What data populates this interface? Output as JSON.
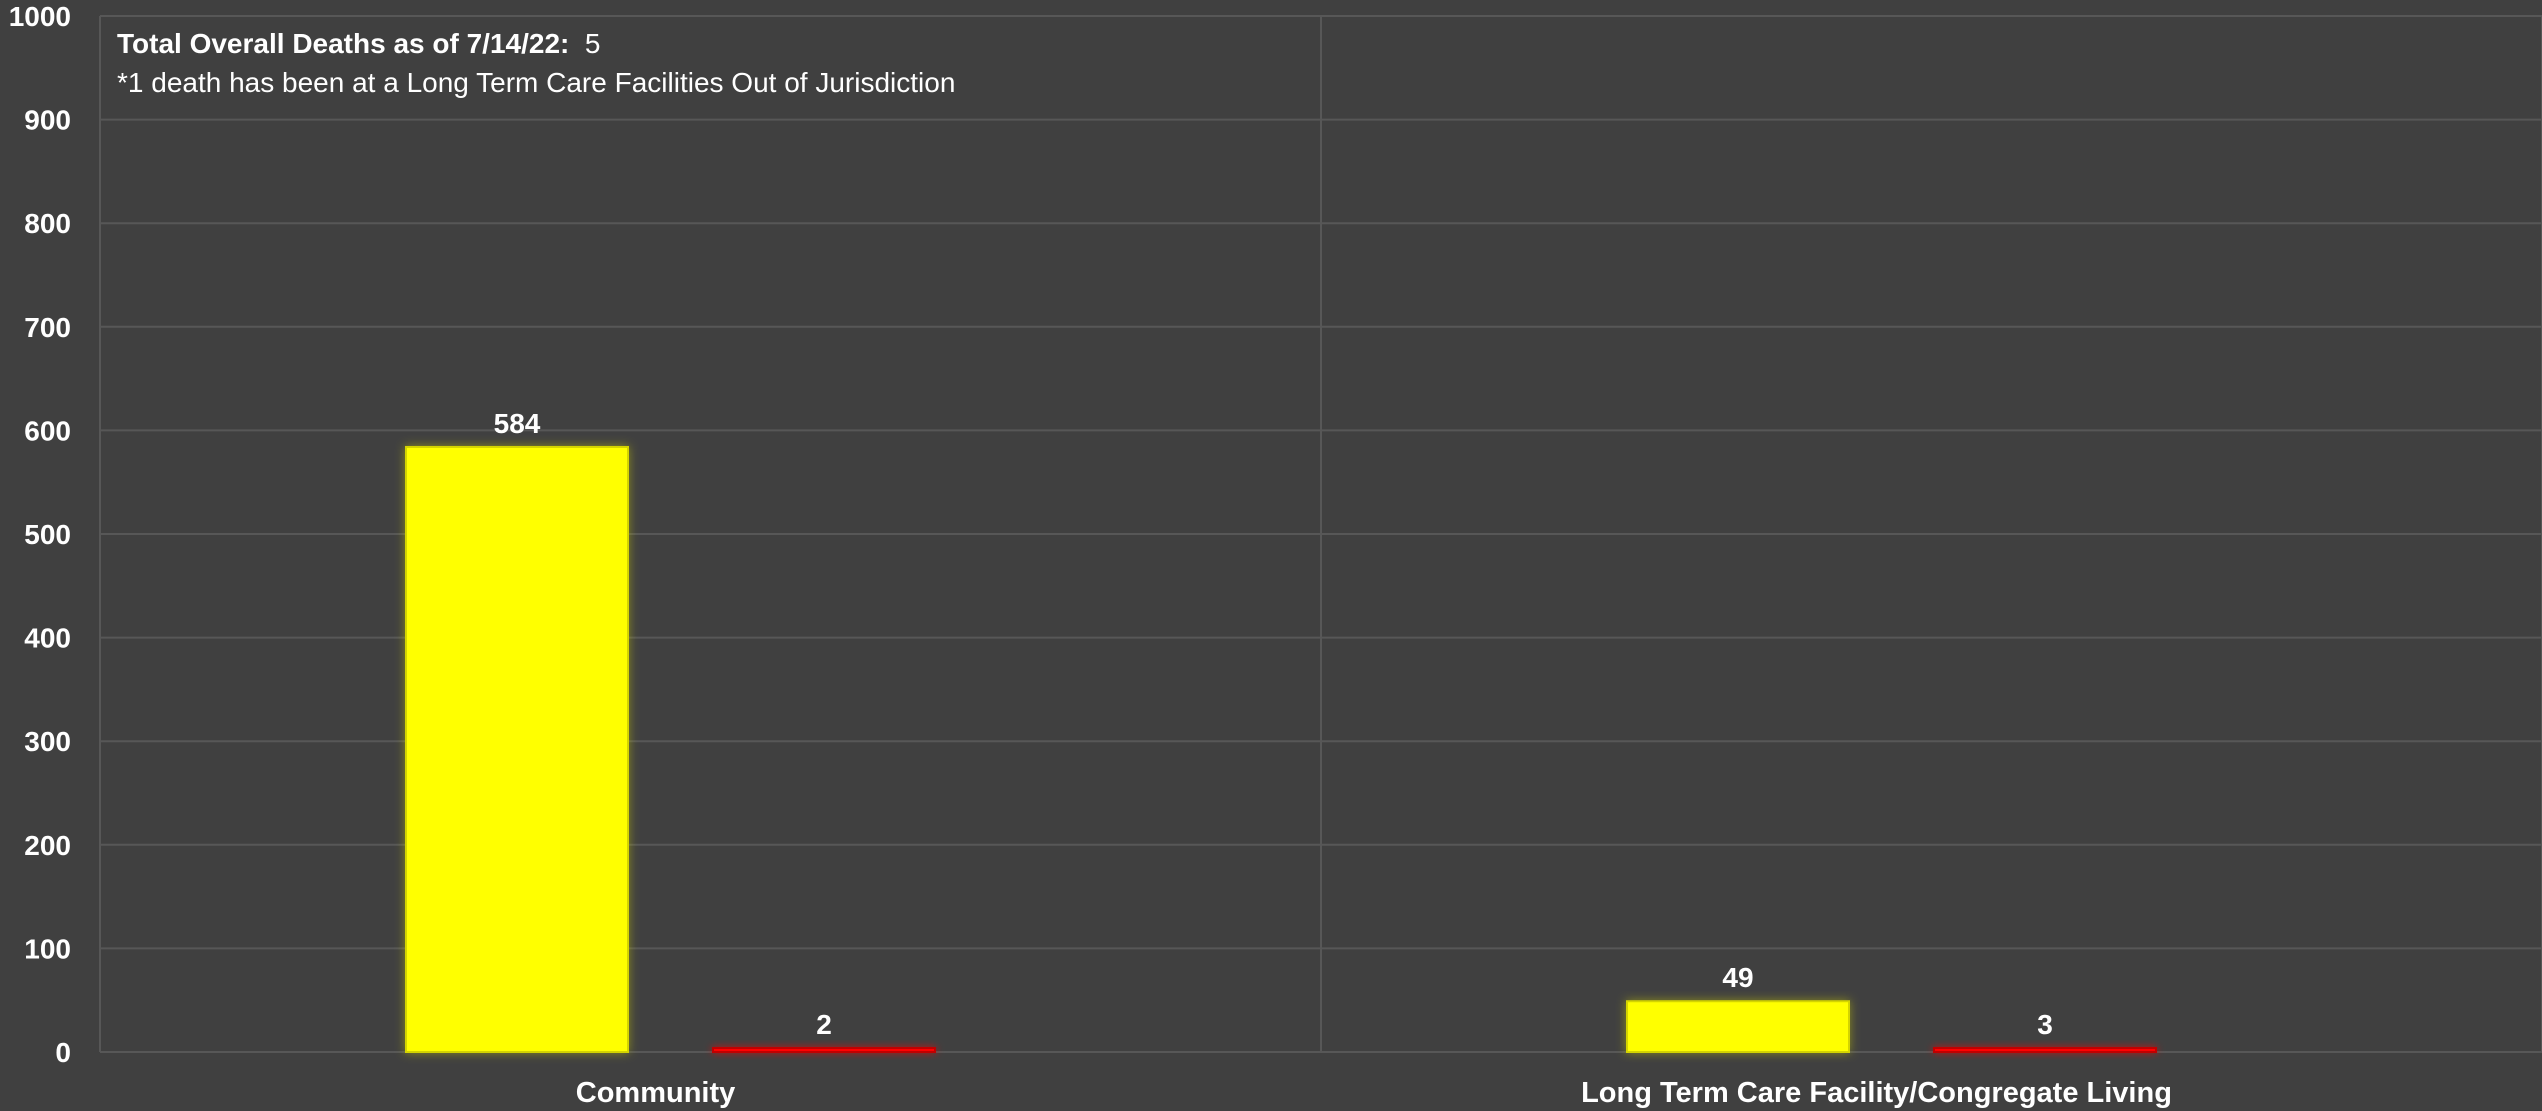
{
  "chart_data": {
    "type": "bar",
    "categories": [
      "Community",
      "Long Term Care Facility/Congregate Living"
    ],
    "series": [
      {
        "values": [
          584,
          49
        ],
        "color": "#FFFF00"
      },
      {
        "values": [
          2,
          3
        ],
        "color": "#FF0000"
      }
    ],
    "ylim": [
      0,
      1000
    ],
    "yticks": [
      0,
      100,
      200,
      300,
      400,
      500,
      600,
      700,
      800,
      900,
      1000
    ],
    "grid": true,
    "legend": "none",
    "annotations": {
      "total_label": "Total Overall Deaths as of 7/14/22:",
      "total_value": "5",
      "footnote": "*1 death has been at a Long Term Care Facilities Out of Jurisdiction"
    }
  },
  "colors": {
    "background": "#404040",
    "gridline": "#575757",
    "text": "#FFFFFF"
  }
}
